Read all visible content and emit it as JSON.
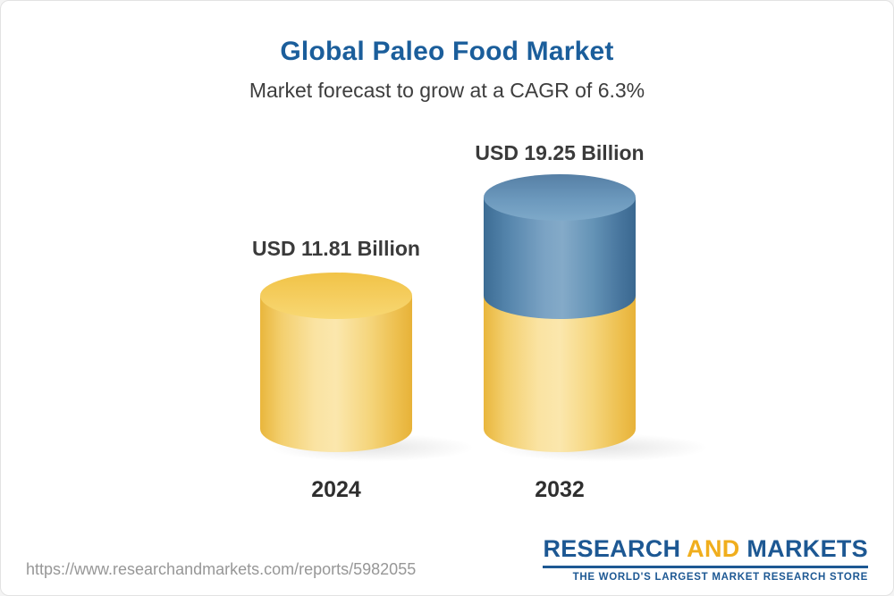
{
  "page": {
    "url": "https://www.researchandmarkets.com/reports/5982055"
  },
  "logo": {
    "word1": "RESEARCH",
    "word2": "AND",
    "word3": "MARKETS",
    "tagline": "THE WORLD'S LARGEST MARKET RESEARCH STORE"
  },
  "chart_data": {
    "type": "bar",
    "style": "3d-cylinder",
    "title": "Global Paleo Food Market",
    "subtitle": "Market forecast to grow at a CAGR of 6.3%",
    "cagr": "6.3%",
    "unit": "USD Billion",
    "categories": [
      "2024",
      "2032"
    ],
    "values": [
      11.81,
      19.25
    ],
    "value_labels": [
      "USD 11.81 Billion",
      "USD 19.25 Billion"
    ],
    "legend": "none",
    "grid": "off",
    "colors": {
      "bar_base": "#F2C95C",
      "bar_growth": "#5586AD",
      "title_blue": "#1B5E9B",
      "label_gray": "#3A3A3A",
      "logo_blue": "#1D5893",
      "logo_gold": "#F0AE1D"
    }
  }
}
